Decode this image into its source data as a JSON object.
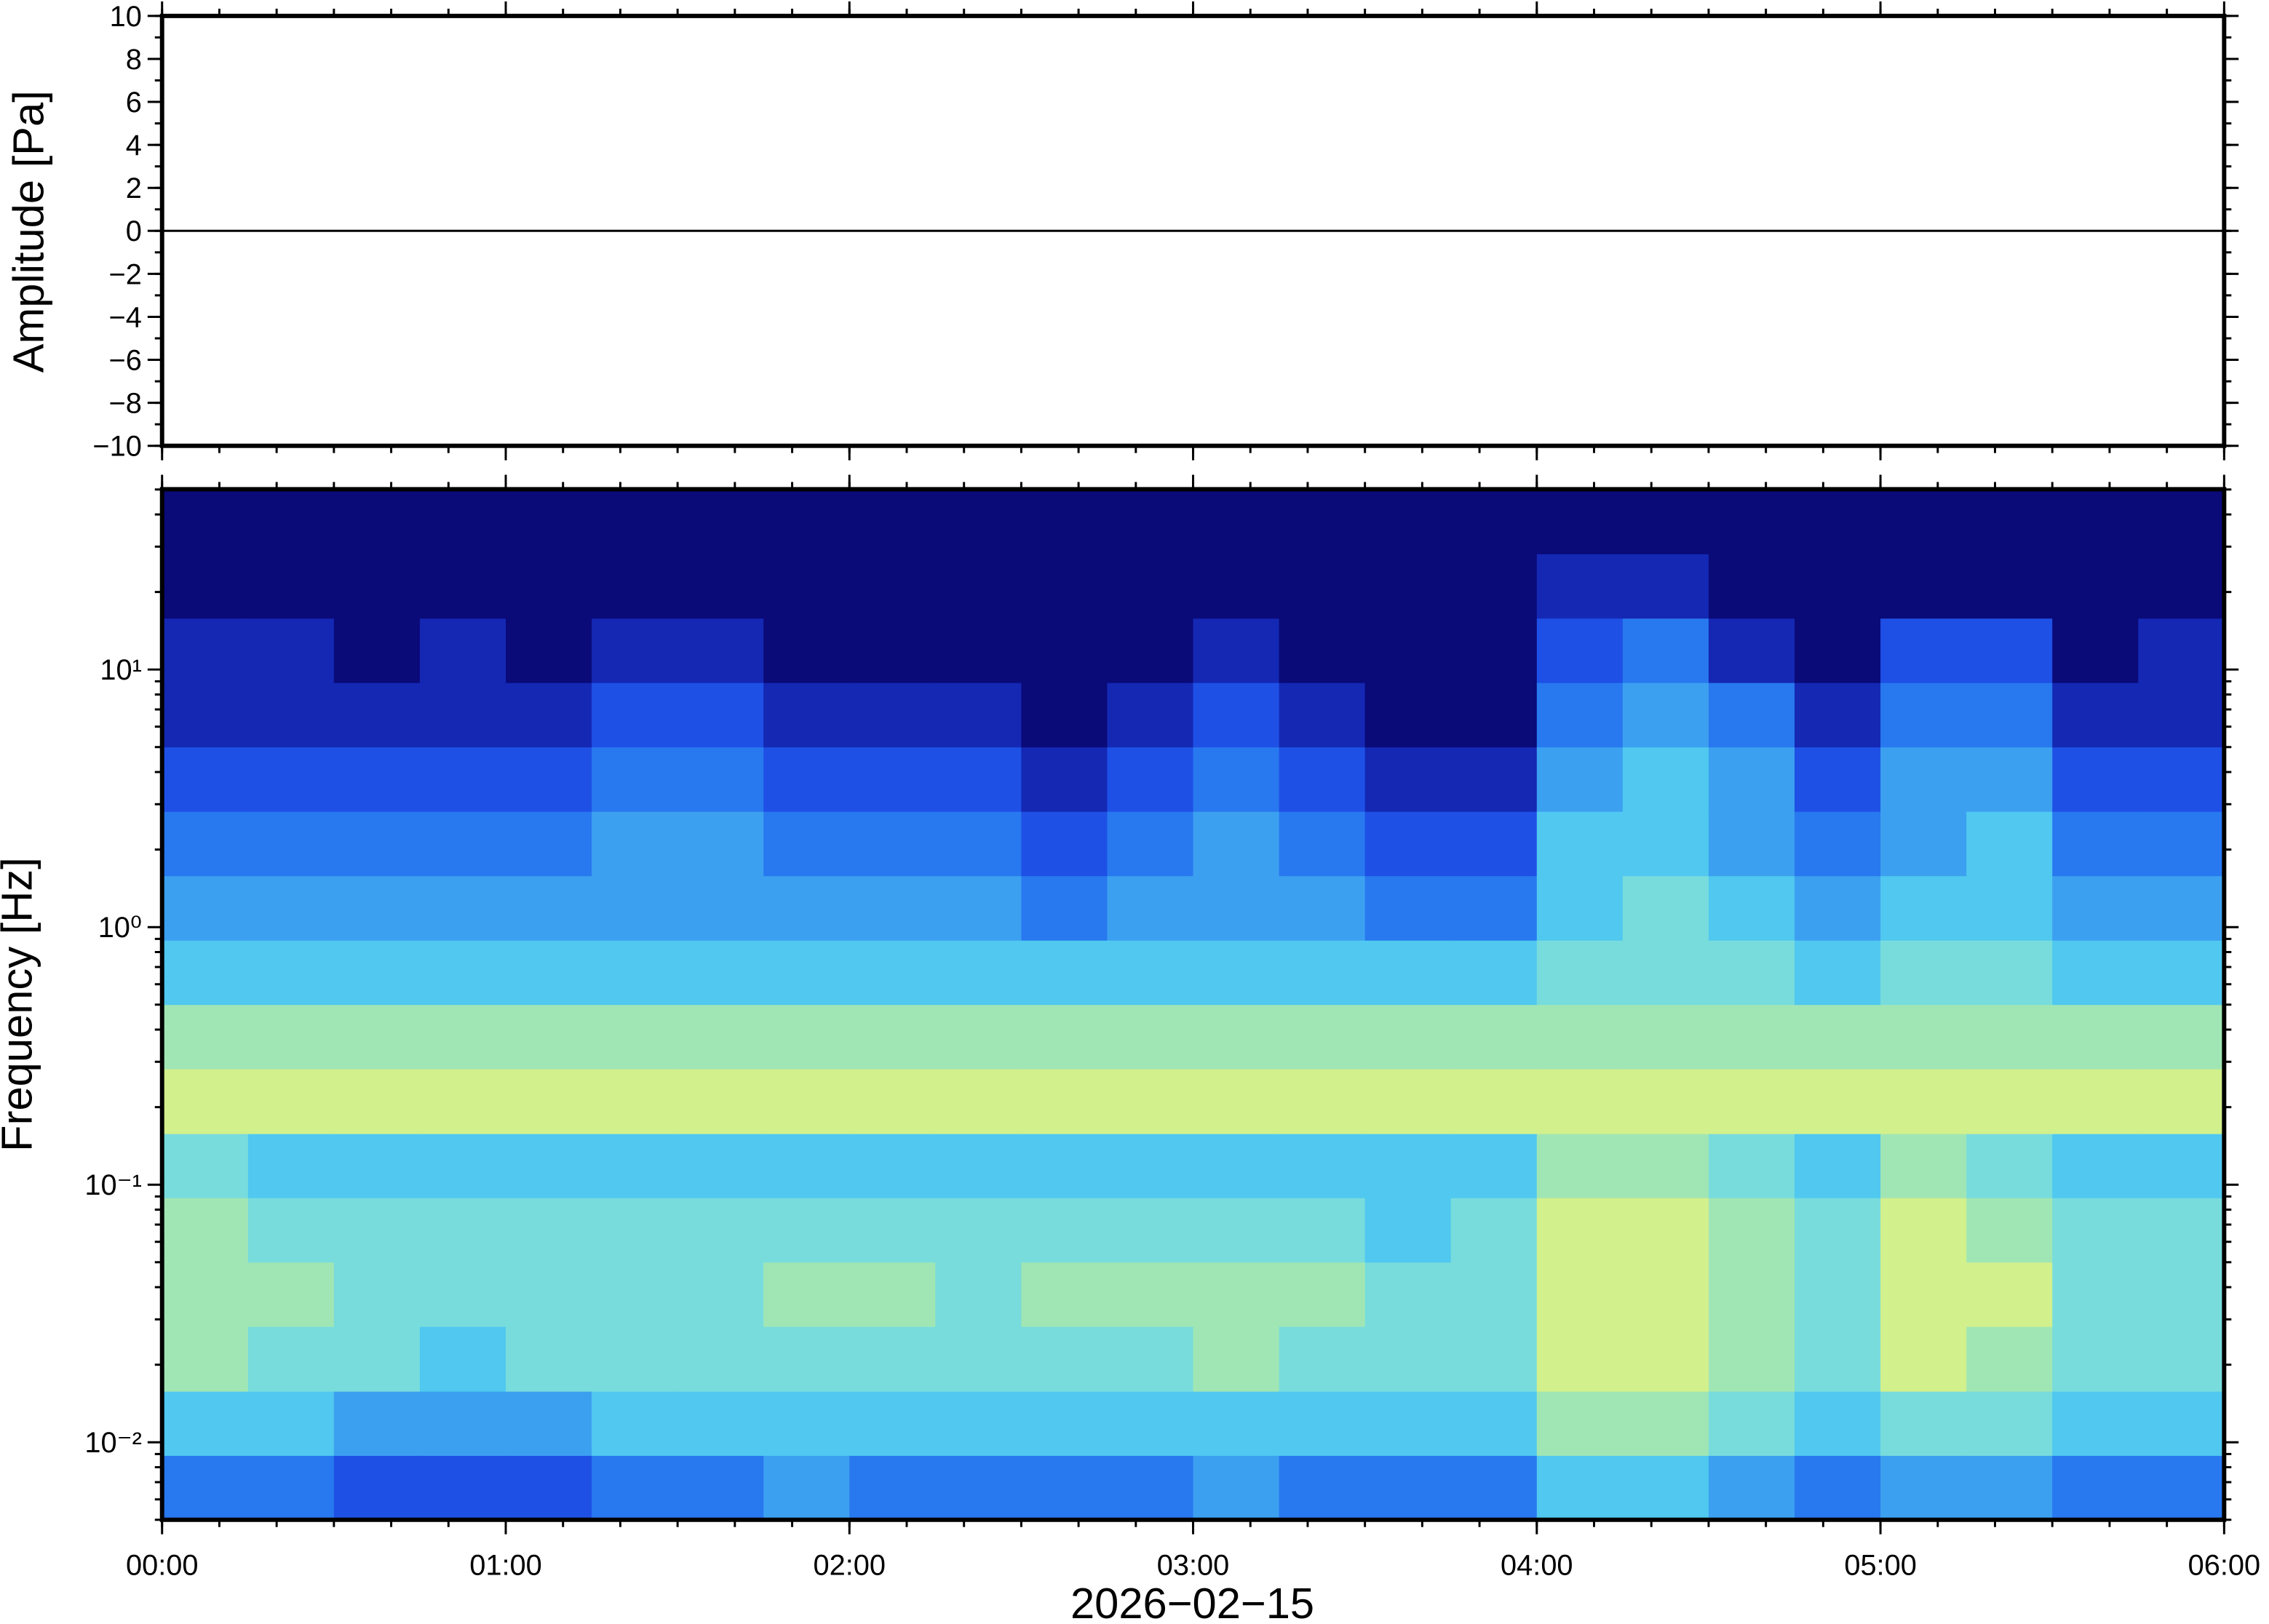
{
  "chart_data": [
    {
      "type": "line",
      "ylabel": "Amplitude [Pa]",
      "xlim": [
        0,
        6
      ],
      "xticks": [
        0,
        1,
        2,
        3,
        4,
        5,
        6
      ],
      "ylim": [
        -10,
        10
      ],
      "yticks": [
        {
          "value": -10,
          "label": "−10"
        },
        {
          "value": -8,
          "label": "−8"
        },
        {
          "value": -6,
          "label": "−6"
        },
        {
          "value": -4,
          "label": "−4"
        },
        {
          "value": -2,
          "label": "−2"
        },
        0,
        2,
        4,
        6,
        8,
        10
      ],
      "color": "#000000",
      "x": [
        0,
        1,
        2,
        3,
        4,
        5,
        6
      ],
      "values": [
        0,
        0,
        0,
        0,
        0,
        0,
        0
      ]
    },
    {
      "type": "heatmap",
      "ylabel": "Frequency [Hz]",
      "xlabel": "2026−02−15",
      "yscale": "log",
      "xlim": [
        0,
        6
      ],
      "xticks": [
        {
          "value": 0,
          "label": "00:00"
        },
        {
          "value": 1,
          "label": "01:00"
        },
        {
          "value": 2,
          "label": "02:00"
        },
        {
          "value": 3,
          "label": "03:00"
        },
        {
          "value": 4,
          "label": "04:00"
        },
        {
          "value": 5,
          "label": "05:00"
        },
        {
          "value": 6,
          "label": "06:00"
        }
      ],
      "ylim": [
        0.005,
        50.12
      ],
      "yticks": [
        {
          "value": 0.01,
          "label": "10⁻²"
        },
        {
          "value": 0.1,
          "label": "10⁻¹"
        },
        {
          "value": 1,
          "label": "10⁰"
        },
        {
          "value": 10,
          "label": "10¹"
        }
      ],
      "colormap": [
        "#0a0a78",
        "#1428b4",
        "#1e50e6",
        "#2878f0",
        "#3ca0f0",
        "#50c8f0",
        "#78dcdc",
        "#a0e6b4",
        "#d2f08c",
        "#f0e678",
        "#f5b464"
      ],
      "time_bins": [
        0,
        0.25,
        0.5,
        0.75,
        1,
        1.25,
        1.5,
        1.75,
        2,
        2.25,
        2.5,
        2.75,
        3,
        3.25,
        3.5,
        3.75,
        4,
        4.25,
        4.5,
        4.75,
        5,
        5.25,
        5.5,
        5.75,
        6
      ],
      "frequency_bins": [
        0.005,
        0.0089,
        0.0158,
        0.0282,
        0.0501,
        0.0891,
        0.158,
        0.282,
        0.501,
        0.891,
        1.585,
        2.818,
        5.012,
        8.913,
        15.85,
        28.18,
        50.12
      ],
      "values": [
        [
          3,
          5,
          7,
          7,
          7,
          6,
          8,
          7,
          5,
          4,
          3,
          2,
          1,
          1,
          0,
          0
        ],
        [
          3,
          5,
          6,
          7,
          6,
          5,
          8,
          7,
          5,
          4,
          3,
          2,
          1,
          1,
          0,
          0
        ],
        [
          2,
          4,
          6,
          6,
          6,
          5,
          8,
          7,
          5,
          4,
          3,
          2,
          1,
          0,
          0,
          0
        ],
        [
          2,
          4,
          5,
          6,
          6,
          5,
          8,
          7,
          5,
          4,
          3,
          2,
          1,
          1,
          0,
          0
        ],
        [
          2,
          4,
          6,
          6,
          6,
          5,
          8,
          7,
          5,
          4,
          3,
          2,
          1,
          0,
          0,
          0
        ],
        [
          3,
          5,
          6,
          6,
          6,
          5,
          8,
          7,
          5,
          4,
          4,
          3,
          2,
          1,
          0,
          0
        ],
        [
          3,
          5,
          6,
          6,
          6,
          5,
          8,
          7,
          5,
          4,
          4,
          3,
          2,
          1,
          0,
          0
        ],
        [
          4,
          5,
          6,
          7,
          6,
          5,
          8,
          7,
          5,
          4,
          3,
          2,
          1,
          0,
          0,
          0
        ],
        [
          3,
          5,
          6,
          7,
          6,
          5,
          8,
          7,
          5,
          4,
          3,
          2,
          1,
          0,
          0,
          0
        ],
        [
          3,
          5,
          6,
          6,
          6,
          5,
          8,
          7,
          5,
          4,
          3,
          2,
          1,
          0,
          0,
          0
        ],
        [
          3,
          5,
          6,
          7,
          6,
          5,
          8,
          7,
          5,
          3,
          2,
          1,
          0,
          0,
          0,
          0
        ],
        [
          3,
          5,
          6,
          7,
          6,
          5,
          8,
          7,
          5,
          4,
          3,
          2,
          1,
          0,
          0,
          0
        ],
        [
          4,
          5,
          7,
          7,
          6,
          5,
          8,
          7,
          5,
          4,
          4,
          3,
          2,
          1,
          0,
          0
        ],
        [
          3,
          5,
          6,
          7,
          6,
          5,
          8,
          7,
          5,
          4,
          3,
          2,
          1,
          0,
          0,
          0
        ],
        [
          3,
          5,
          6,
          6,
          5,
          5,
          8,
          7,
          5,
          3,
          2,
          1,
          0,
          0,
          0,
          0
        ],
        [
          3,
          5,
          6,
          6,
          6,
          5,
          8,
          7,
          5,
          3,
          2,
          1,
          0,
          0,
          0,
          0
        ],
        [
          5,
          7,
          8,
          8,
          8,
          7,
          8,
          7,
          6,
          5,
          5,
          4,
          3,
          2,
          1,
          0
        ],
        [
          5,
          7,
          8,
          8,
          8,
          7,
          8,
          7,
          6,
          6,
          5,
          5,
          4,
          3,
          1,
          0
        ],
        [
          4,
          6,
          7,
          7,
          7,
          6,
          8,
          7,
          6,
          5,
          4,
          4,
          3,
          1,
          0,
          0
        ],
        [
          3,
          5,
          6,
          6,
          6,
          5,
          8,
          7,
          5,
          4,
          3,
          2,
          1,
          0,
          0,
          0
        ],
        [
          4,
          6,
          8,
          8,
          8,
          7,
          8,
          7,
          6,
          5,
          4,
          4,
          3,
          2,
          0,
          0
        ],
        [
          4,
          6,
          7,
          8,
          7,
          6,
          8,
          7,
          6,
          5,
          5,
          4,
          3,
          2,
          0,
          0
        ],
        [
          3,
          5,
          6,
          6,
          6,
          5,
          8,
          7,
          5,
          4,
          3,
          2,
          1,
          0,
          0,
          0
        ],
        [
          3,
          5,
          6,
          6,
          6,
          5,
          8,
          7,
          5,
          4,
          3,
          2,
          1,
          1,
          0,
          0
        ]
      ]
    }
  ]
}
